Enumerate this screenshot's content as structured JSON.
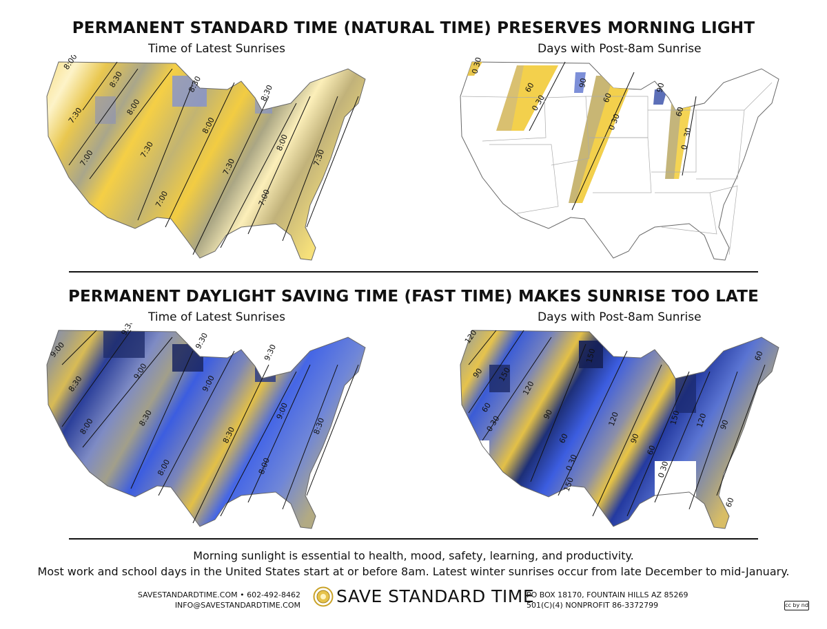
{
  "top_section": {
    "title": "PERMANENT STANDARD TIME (NATURAL TIME) PRESERVES MORNING LIGHT",
    "left_map": {
      "subtitle": "Time of Latest Sunrises",
      "contour_labels": [
        "8:00",
        "8:30",
        "8:30",
        "8:30",
        "7:30",
        "8:00",
        "8:00",
        "7:00",
        "7:30",
        "7:30",
        "8:00",
        "7:30",
        "7:00",
        "7:00"
      ]
    },
    "right_map": {
      "subtitle": "Days with Post-8am Sunrise",
      "contour_labels": [
        "0 30",
        "60",
        "0 30",
        "90",
        "60",
        "0 30",
        "90",
        "60",
        "30",
        "0"
      ]
    },
    "colors": {
      "light": "#fdf3c8",
      "yellow": "#f6d04a",
      "gray": "#a9a68a",
      "blue": "#7d8fd8"
    }
  },
  "bottom_section": {
    "title": "PERMANENT DAYLIGHT SAVING TIME (FAST TIME) MAKES SUNRISE TOO LATE",
    "left_map": {
      "subtitle": "Time of Latest Sunrises",
      "contour_labels": [
        "9:00",
        "9:30",
        "9:30",
        "9:30",
        "8:30",
        "9:00",
        "9:00",
        "9:00",
        "8:00",
        "8:30",
        "8:30",
        "8:30",
        "8:00",
        "8:00"
      ]
    },
    "right_map": {
      "subtitle": "Days with Post-8am Sunrise",
      "contour_labels": [
        "120",
        "90",
        "150",
        "60",
        "0 30",
        "120",
        "90",
        "150",
        "60",
        "0 30",
        "150",
        "120",
        "90",
        "60",
        "150",
        "0 30",
        "120",
        "90",
        "60",
        "60"
      ]
    },
    "colors": {
      "navy": "#1c2e6e",
      "blue": "#3f63e6",
      "gray": "#9c9a8e",
      "yellow": "#e8c444"
    }
  },
  "footer": {
    "line1": "Morning sunlight is essential to health, mood, safety, learning, and productivity.",
    "line2": "Most work and school days in the United States start at or before 8am. Latest winter sunrises occur from late December to mid-January.",
    "contact_left_1": "SAVESTANDARDTIME.COM • 602-492-8462",
    "contact_left_2": "INFO@SAVESTANDARDTIME.COM",
    "brand": "SAVE STANDARD TIME",
    "contact_right_1": "PO BOX 18170, FOUNTAIN HILLS AZ 85269",
    "contact_right_2": "501(C)(4) NONPROFIT 86-3372799",
    "license_badge": "cc by nd",
    "icons": [
      "sun-logo-icon",
      "creative-commons-icon"
    ]
  }
}
